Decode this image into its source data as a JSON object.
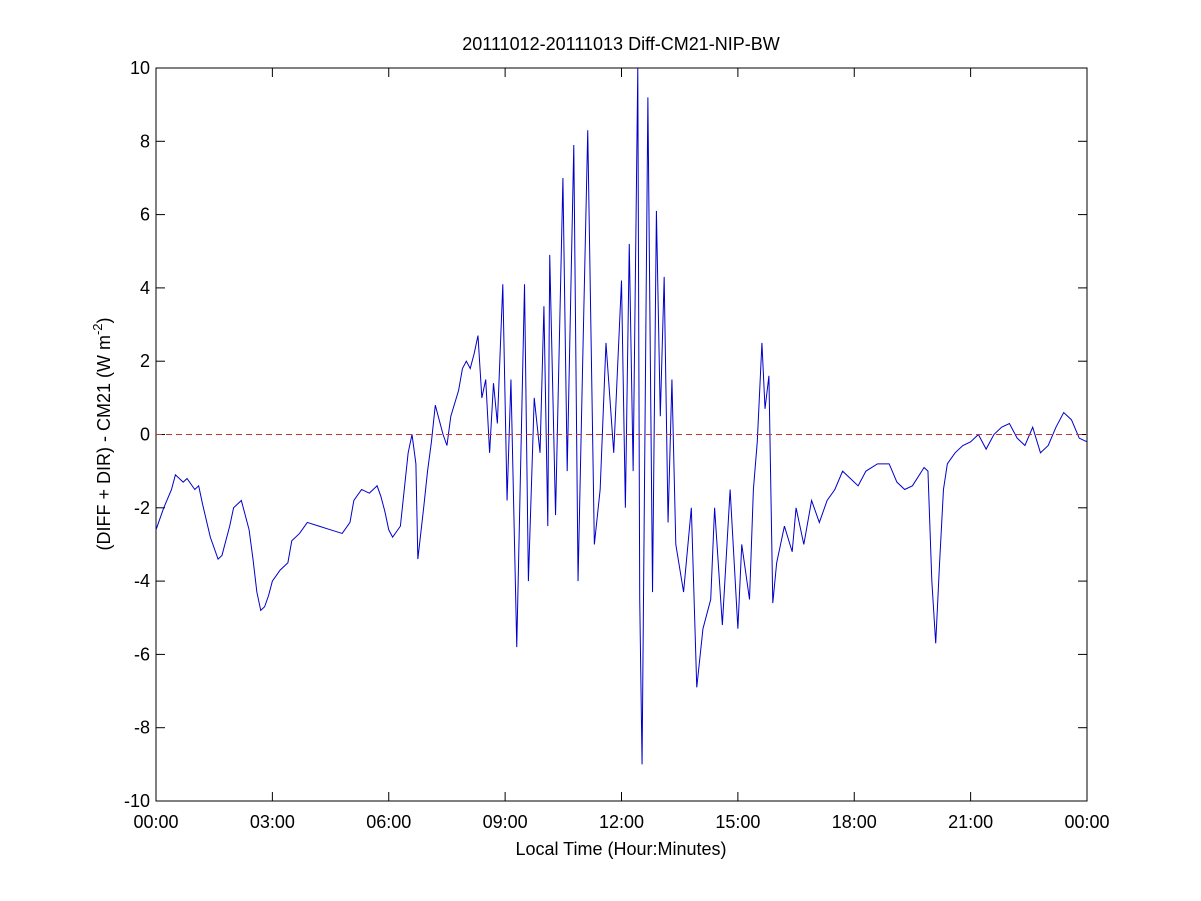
{
  "chart_data": {
    "type": "line",
    "title": "20111012-20111013 Diff-CM21-NIP-BW",
    "xlabel": "Local Time (Hour:Minutes)",
    "ylabel": {
      "text": "(DIFF + DIR) - CM21 (W m",
      "superscript": "-2",
      "suffix": ")"
    },
    "xlim": [
      0,
      24
    ],
    "xticks": [
      {
        "value": 0,
        "label": "00:00"
      },
      {
        "value": 3,
        "label": "03:00"
      },
      {
        "value": 6,
        "label": "06:00"
      },
      {
        "value": 9,
        "label": "09:00"
      },
      {
        "value": 12,
        "label": "12:00"
      },
      {
        "value": 15,
        "label": "15:00"
      },
      {
        "value": 18,
        "label": "18:00"
      },
      {
        "value": 21,
        "label": "21:00"
      },
      {
        "value": 24,
        "label": "00:00"
      }
    ],
    "ylim": [
      -10,
      10
    ],
    "yticks": [
      -10,
      -8,
      -6,
      -4,
      -2,
      0,
      2,
      4,
      6,
      8,
      10
    ],
    "reference_line": {
      "value": 0,
      "color": "#c0392b"
    },
    "series": [
      {
        "color": "#0000cc",
        "x": [
          0.0,
          0.2,
          0.4,
          0.5,
          0.7,
          0.8,
          1.0,
          1.1,
          1.2,
          1.4,
          1.6,
          1.7,
          1.8,
          1.9,
          2.0,
          2.1,
          2.2,
          2.3,
          2.4,
          2.5,
          2.6,
          2.7,
          2.8,
          2.9,
          3.0,
          3.2,
          3.4,
          3.5,
          3.7,
          3.9,
          4.2,
          4.5,
          4.8,
          5.0,
          5.1,
          5.3,
          5.5,
          5.7,
          5.8,
          5.9,
          6.0,
          6.1,
          6.3,
          6.4,
          6.5,
          6.6,
          6.7,
          6.75,
          6.9,
          7.0,
          7.1,
          7.2,
          7.3,
          7.4,
          7.5,
          7.6,
          7.8,
          7.9,
          8.0,
          8.1,
          8.2,
          8.3,
          8.4,
          8.5,
          8.6,
          8.7,
          8.8,
          8.94,
          9.05,
          9.15,
          9.3,
          9.5,
          9.6,
          9.75,
          9.9,
          10.0,
          10.1,
          10.15,
          10.3,
          10.49,
          10.6,
          10.77,
          10.88,
          11.0,
          11.13,
          11.3,
          11.45,
          11.6,
          11.8,
          12.0,
          12.1,
          12.2,
          12.3,
          12.42,
          12.47,
          12.53,
          12.68,
          12.8,
          12.9,
          13.0,
          13.1,
          13.2,
          13.3,
          13.4,
          13.6,
          13.8,
          13.94,
          14.1,
          14.3,
          14.4,
          14.6,
          14.8,
          15.0,
          15.1,
          15.3,
          15.4,
          15.5,
          15.62,
          15.7,
          15.8,
          15.9,
          16.0,
          16.2,
          16.4,
          16.5,
          16.7,
          16.9,
          17.1,
          17.3,
          17.5,
          17.7,
          17.9,
          18.1,
          18.3,
          18.6,
          18.9,
          19.1,
          19.3,
          19.5,
          19.8,
          19.9,
          20.0,
          20.1,
          20.2,
          20.3,
          20.4,
          20.6,
          20.8,
          21.0,
          21.2,
          21.4,
          21.6,
          21.8,
          22.0,
          22.2,
          22.4,
          22.6,
          22.8,
          23.0,
          23.2,
          23.4,
          23.6,
          23.8,
          24.0
        ],
        "values": [
          -2.6,
          -2.0,
          -1.5,
          -1.1,
          -1.3,
          -1.2,
          -1.5,
          -1.4,
          -1.9,
          -2.8,
          -3.4,
          -3.3,
          -2.9,
          -2.5,
          -2.0,
          -1.9,
          -1.8,
          -2.2,
          -2.6,
          -3.4,
          -4.3,
          -4.8,
          -4.7,
          -4.4,
          -4.0,
          -3.7,
          -3.5,
          -2.9,
          -2.7,
          -2.4,
          -2.5,
          -2.6,
          -2.7,
          -2.4,
          -1.8,
          -1.5,
          -1.6,
          -1.4,
          -1.7,
          -2.1,
          -2.6,
          -2.8,
          -2.5,
          -1.5,
          -0.5,
          0.0,
          -0.8,
          -3.4,
          -2.0,
          -1.0,
          -0.2,
          0.8,
          0.4,
          0.0,
          -0.3,
          0.5,
          1.2,
          1.8,
          2.0,
          1.8,
          2.2,
          2.7,
          1.0,
          1.5,
          -0.5,
          1.4,
          0.3,
          4.1,
          -1.8,
          1.5,
          -5.8,
          4.1,
          -4.0,
          1.0,
          -0.5,
          3.5,
          -2.5,
          4.9,
          -2.2,
          7.0,
          -1.0,
          7.9,
          -4.0,
          2.0,
          8.3,
          -3.0,
          -1.5,
          2.5,
          -0.5,
          4.2,
          -2.0,
          5.2,
          -1.0,
          10.0,
          -4.5,
          -9.0,
          9.2,
          -4.3,
          6.1,
          0.5,
          4.3,
          -2.4,
          1.5,
          -3.0,
          -4.3,
          -2.0,
          -6.9,
          -5.3,
          -4.5,
          -2.0,
          -5.2,
          -1.5,
          -5.3,
          -3.0,
          -4.5,
          -1.5,
          -0.2,
          2.5,
          0.7,
          1.6,
          -4.6,
          -3.5,
          -2.5,
          -3.2,
          -2.0,
          -3.0,
          -1.8,
          -2.4,
          -1.8,
          -1.5,
          -1.0,
          -1.2,
          -1.4,
          -1.0,
          -0.8,
          -0.8,
          -1.3,
          -1.5,
          -1.4,
          -0.9,
          -1.0,
          -4.0,
          -5.7,
          -3.5,
          -1.5,
          -0.8,
          -0.5,
          -0.3,
          -0.2,
          0.0,
          -0.4,
          0.0,
          0.2,
          0.3,
          -0.1,
          -0.3,
          0.2,
          -0.5,
          -0.3,
          0.2,
          0.6,
          0.4,
          -0.1,
          -0.2
        ]
      }
    ]
  }
}
